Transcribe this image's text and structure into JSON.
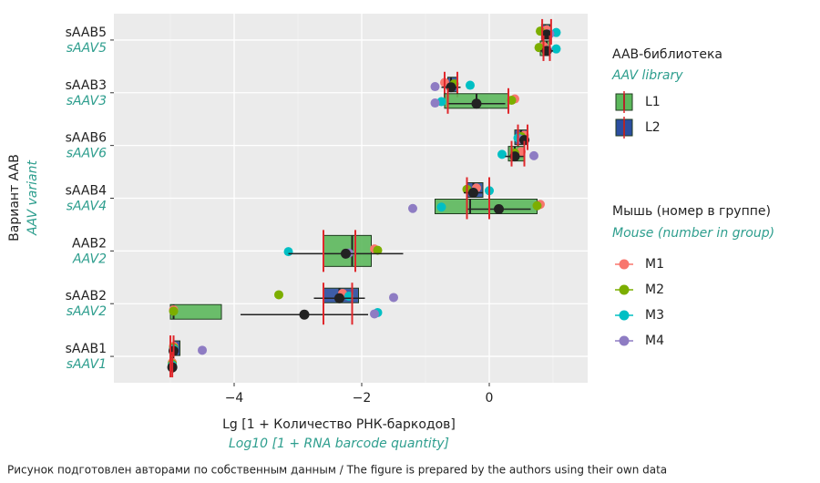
{
  "chart_data": {
    "type": "boxplot",
    "x_label": "Lg [1 + Количество РНК-баркодов]",
    "x_label_en": "Log10 [1 + RNA barcode quantity]",
    "y_label": "Вариант AAB",
    "y_label_en": "AAV variant",
    "caption": "Рисунок подготовлен авторами по собственным данным / The figure is prepared by the authors using their own data",
    "categories": [
      {
        "ru": "sAAB5",
        "en": "sAAV5"
      },
      {
        "ru": "sAAB3",
        "en": "sAAV3"
      },
      {
        "ru": "sAAB6",
        "en": "sAAV6"
      },
      {
        "ru": "sAAB4",
        "en": "sAAV4"
      },
      {
        "ru": "AAB2",
        "en": "AAV2"
      },
      {
        "ru": "sAAB2",
        "en": "sAAV2"
      },
      {
        "ru": "sAAB1",
        "en": "sAAV1"
      }
    ],
    "xlim": [
      -5.886,
      1.543
    ],
    "xticks": [
      {
        "value": -4,
        "label": "−4"
      },
      {
        "value": -2,
        "label": "−2"
      },
      0
    ],
    "minor_xticks": [
      -5,
      -3,
      -1,
      1
    ],
    "grid": true,
    "library_legend_title": "AAB-библиотека",
    "library_legend_title_en": "AAV library",
    "mouse_legend_title": "Мышь (номер в группе)",
    "mouse_legend_title_en": "Mouse (number in group)",
    "mice": [
      {
        "name": "M1",
        "color": "#f8766d"
      },
      {
        "name": "M2",
        "color": "#7cae00"
      },
      {
        "name": "M3",
        "color": "#00bfc4"
      },
      {
        "name": "M4",
        "color": "#8e7cc3"
      }
    ],
    "series": [
      {
        "name": "L1",
        "color": "#5cb85c",
        "data": [
          {
            "box": [
              0.8,
              0.9,
              0.95
            ],
            "mean": 0.9,
            "sd": 0.1,
            "ci": [
              0.85,
              0.95
            ],
            "mice": [
              0.85,
              0.78,
              1.05,
              0.92
            ]
          },
          {
            "box": [
              -0.7,
              -0.2,
              0.3
            ],
            "mean": -0.2,
            "sd": 0.45,
            "ci": [
              -0.65,
              0.3
            ],
            "mice": [
              0.4,
              0.35,
              -0.75,
              -0.85
            ]
          },
          {
            "box": [
              0.3,
              0.4,
              0.55
            ],
            "mean": 0.4,
            "sd": 0.15,
            "ci": [
              0.35,
              0.55
            ],
            "mice": [
              0.5,
              0.4,
              0.2,
              0.7
            ]
          },
          {
            "box": [
              -0.85,
              -0.3,
              0.75
            ],
            "mean": 0.15,
            "sd": 0.5,
            "ci": [
              -0.35,
              0
            ],
            "mice": [
              0.8,
              0.75,
              -0.75,
              -1.2
            ]
          },
          {
            "box": [
              -2.6,
              -2.15,
              -1.85
            ],
            "mean": -2.25,
            "sd": 0.9,
            "ci": [
              -2.6,
              -2.1
            ],
            "mice": [
              -1.8,
              -1.75,
              -3.15,
              -2.2
            ]
          },
          {
            "box": [
              -5,
              -4.95,
              -4.2
            ],
            "mean": -2.9,
            "sd": 1,
            "ci": [
              -2.6,
              -2.15
            ],
            "mice": [
              -4.95,
              -4.95,
              -1.75,
              -1.8
            ]
          },
          {
            "box": [
              -4.98,
              -4.97,
              -4.95
            ],
            "mean": -4.97,
            "sd": 0.02,
            "ci": [
              -5,
              -4.97
            ],
            "mice": [
              -4.97,
              -4.97,
              -4.97,
              -4.97
            ]
          }
        ]
      },
      {
        "name": "L2",
        "color": "#2b4ea0",
        "data": [
          {
            "box": [
              0.82,
              0.88,
              0.95
            ],
            "mean": 0.9,
            "sd": 0.05,
            "ci": [
              0.83,
              0.97
            ],
            "mice": [
              0.9,
              0.8,
              1.05,
              0.95
            ]
          },
          {
            "box": [
              -0.65,
              -0.6,
              -0.5
            ],
            "mean": -0.6,
            "sd": 0.15,
            "ci": [
              -0.7,
              -0.5
            ],
            "mice": [
              -0.7,
              -0.55,
              -0.3,
              -0.85
            ]
          },
          {
            "box": [
              0.4,
              0.5,
              0.6
            ],
            "mean": 0.55,
            "sd": 0.08,
            "ci": [
              0.45,
              0.6
            ],
            "mice": [
              0.55,
              0.5,
              0.45,
              0.5
            ]
          },
          {
            "box": [
              -0.35,
              -0.25,
              -0.1
            ],
            "mean": -0.25,
            "sd": 0.15,
            "ci": [
              -0.35,
              0
            ],
            "mice": [
              -0.2,
              -0.35,
              0,
              -0.25
            ]
          },
          null,
          {
            "box": [
              -2.6,
              -2.35,
              -2.05
            ],
            "mean": -2.35,
            "sd": 0.4,
            "ci": [
              -2.6,
              -2.15
            ],
            "mice": [
              -2.3,
              -3.3,
              -2.2,
              -1.5
            ]
          },
          {
            "box": [
              -4.95,
              -4.95,
              -4.85
            ],
            "mean": -4.95,
            "sd": 0.02,
            "ci": [
              -5,
              -4.95
            ],
            "mice": [
              -4.95,
              -4.95,
              -4.95,
              -4.5
            ]
          }
        ]
      }
    ]
  }
}
